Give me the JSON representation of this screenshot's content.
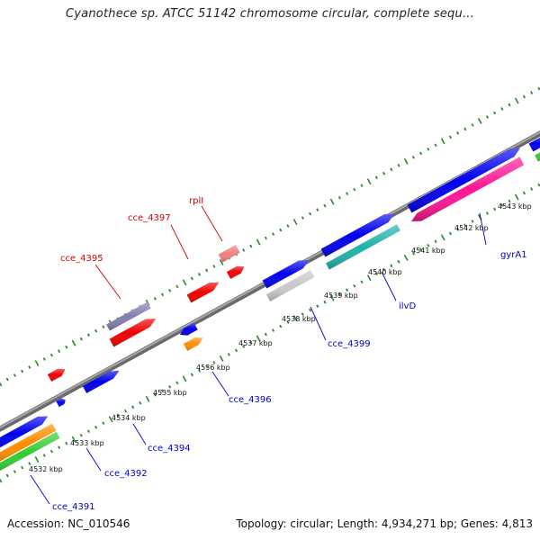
{
  "title": "Cyanothece sp. ATCC 51142 chromosome circular, complete sequ...",
  "accession": "Accession: NC_010546",
  "summary": "Topology: circular; Length: 4,934,271 bp; Genes: 4,813",
  "colors": {
    "backbone": "#808080",
    "tick": "#2a8a2a",
    "label_forward": "#cc0000",
    "label_reverse": "#0000cc"
  },
  "scale_labels": [
    "4532 kbp",
    "4533 kbp",
    "4534 kbp",
    "4535 kbp",
    "4536 kbp",
    "4537 kbp",
    "4538 kbp",
    "4539 kbp",
    "4540 kbp",
    "4541 kbp",
    "4542 kbp",
    "4543 kbp"
  ],
  "gene_labels": {
    "rpll": "rplI",
    "cce_4397": "cce_4397",
    "cce_4395": "cce_4395",
    "gyrA1": "gyrA1",
    "ilvD": "ilvD",
    "cce_4399": "cce_4399",
    "cce_4396": "cce_4396",
    "cce_4394": "cce_4394",
    "cce_4392": "cce_4392",
    "cce_4391": "cce_4391"
  }
}
